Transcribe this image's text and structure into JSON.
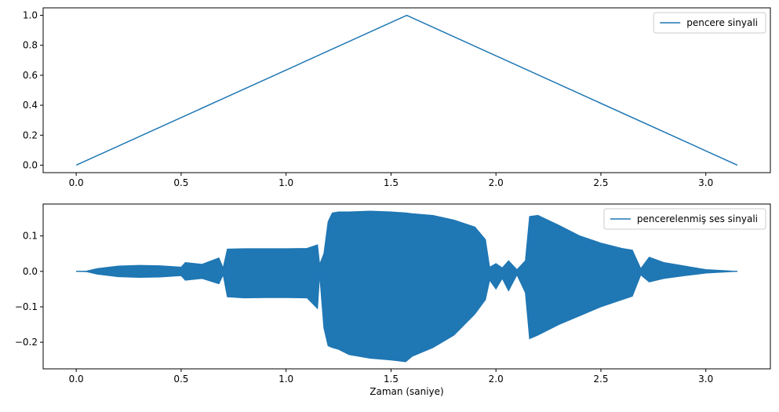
{
  "chart_data": [
    {
      "type": "line",
      "title": "",
      "xlabel": "",
      "ylabel": "",
      "xlim": [
        -0.1575,
        3.3075
      ],
      "ylim": [
        -0.05,
        1.05
      ],
      "xticks": [
        0.0,
        0.5,
        1.0,
        1.5,
        2.0,
        2.5,
        3.0
      ],
      "xtick_labels": [
        "0.0",
        "0.5",
        "1.0",
        "1.5",
        "2.0",
        "2.5",
        "3.0"
      ],
      "yticks": [
        0.0,
        0.2,
        0.4,
        0.6,
        0.8,
        1.0
      ],
      "ytick_labels": [
        "0.0",
        "0.2",
        "0.4",
        "0.6",
        "0.8",
        "1.0"
      ],
      "grid": false,
      "legend_position": "top-right",
      "series": [
        {
          "name": "pencere sinyali",
          "color": "#1f77b4",
          "x": [
            0.0,
            1.575,
            3.15
          ],
          "y": [
            0.0,
            1.0,
            0.0
          ]
        }
      ]
    },
    {
      "type": "area",
      "title": "",
      "xlabel": "Zaman (saniye)",
      "ylabel": "",
      "xlim": [
        -0.1575,
        3.3075
      ],
      "ylim": [
        -0.275,
        0.19
      ],
      "xticks": [
        0.0,
        0.5,
        1.0,
        1.5,
        2.0,
        2.5,
        3.0
      ],
      "xtick_labels": [
        "0.0",
        "0.5",
        "1.0",
        "1.5",
        "2.0",
        "2.5",
        "3.0"
      ],
      "yticks": [
        0.1,
        0.0,
        -0.1,
        -0.2
      ],
      "ytick_labels": [
        "0.1",
        "0.0",
        "−0.1",
        "−0.2"
      ],
      "grid": false,
      "legend_position": "top-right",
      "series": [
        {
          "name": "pencerelenmiş ses sinyali",
          "color": "#1f77b4",
          "x": [
            0.0,
            0.05,
            0.1,
            0.2,
            0.3,
            0.4,
            0.5,
            0.52,
            0.6,
            0.68,
            0.7,
            0.72,
            0.8,
            0.9,
            1.0,
            1.1,
            1.15,
            1.16,
            1.18,
            1.2,
            1.22,
            1.25,
            1.3,
            1.4,
            1.5,
            1.57,
            1.6,
            1.7,
            1.8,
            1.9,
            1.95,
            1.97,
            2.0,
            2.03,
            2.06,
            2.1,
            2.14,
            2.16,
            2.2,
            2.3,
            2.4,
            2.5,
            2.6,
            2.65,
            2.69,
            2.73,
            2.8,
            2.9,
            3.0,
            3.15
          ],
          "upper": [
            0.0,
            0.001,
            0.008,
            0.015,
            0.017,
            0.016,
            0.012,
            0.025,
            0.02,
            0.038,
            0.01,
            0.063,
            0.064,
            0.064,
            0.064,
            0.065,
            0.075,
            0.02,
            0.05,
            0.14,
            0.165,
            0.168,
            0.168,
            0.17,
            0.168,
            0.165,
            0.163,
            0.158,
            0.145,
            0.125,
            0.09,
            0.012,
            0.022,
            0.01,
            0.03,
            0.005,
            0.03,
            0.155,
            0.158,
            0.13,
            0.1,
            0.08,
            0.065,
            0.06,
            0.008,
            0.04,
            0.025,
            0.015,
            0.005,
            0.0
          ],
          "lower": [
            0.0,
            -0.001,
            -0.008,
            -0.015,
            -0.017,
            -0.016,
            -0.012,
            -0.025,
            -0.02,
            -0.035,
            -0.01,
            -0.072,
            -0.075,
            -0.074,
            -0.074,
            -0.075,
            -0.105,
            -0.01,
            -0.16,
            -0.21,
            -0.215,
            -0.22,
            -0.235,
            -0.245,
            -0.25,
            -0.255,
            -0.24,
            -0.215,
            -0.18,
            -0.12,
            -0.08,
            -0.025,
            -0.05,
            -0.02,
            -0.055,
            -0.01,
            -0.06,
            -0.19,
            -0.18,
            -0.15,
            -0.125,
            -0.1,
            -0.08,
            -0.07,
            -0.01,
            -0.03,
            -0.02,
            -0.012,
            -0.005,
            0.0
          ]
        }
      ]
    }
  ]
}
